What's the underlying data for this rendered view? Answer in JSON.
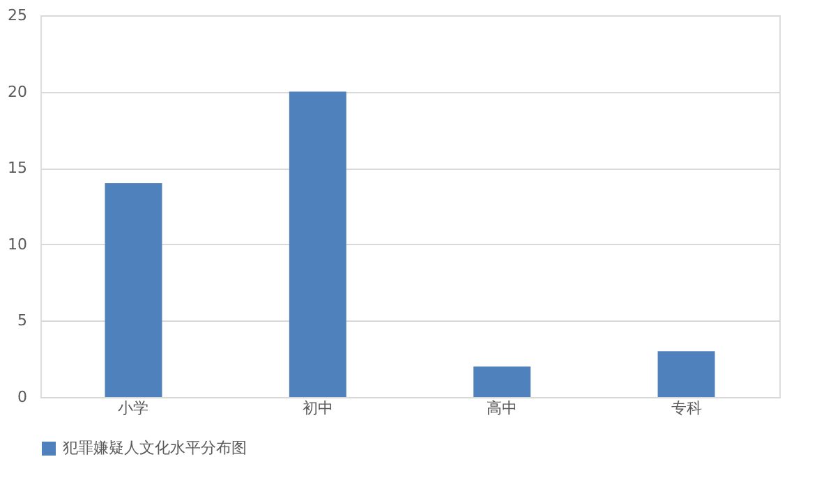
{
  "chart_data": {
    "type": "bar",
    "categories": [
      "小学",
      "初中",
      "高中",
      "专科"
    ],
    "series": [
      {
        "name": "犯罪嫌疑人文化水平分布图",
        "color": "#4f81bd",
        "values": [
          14,
          20,
          2,
          3
        ]
      }
    ],
    "ylim": [
      0,
      25
    ],
    "yticks": [
      0,
      5,
      10,
      15,
      20,
      25
    ],
    "grid": "y",
    "legend": "bottom"
  }
}
